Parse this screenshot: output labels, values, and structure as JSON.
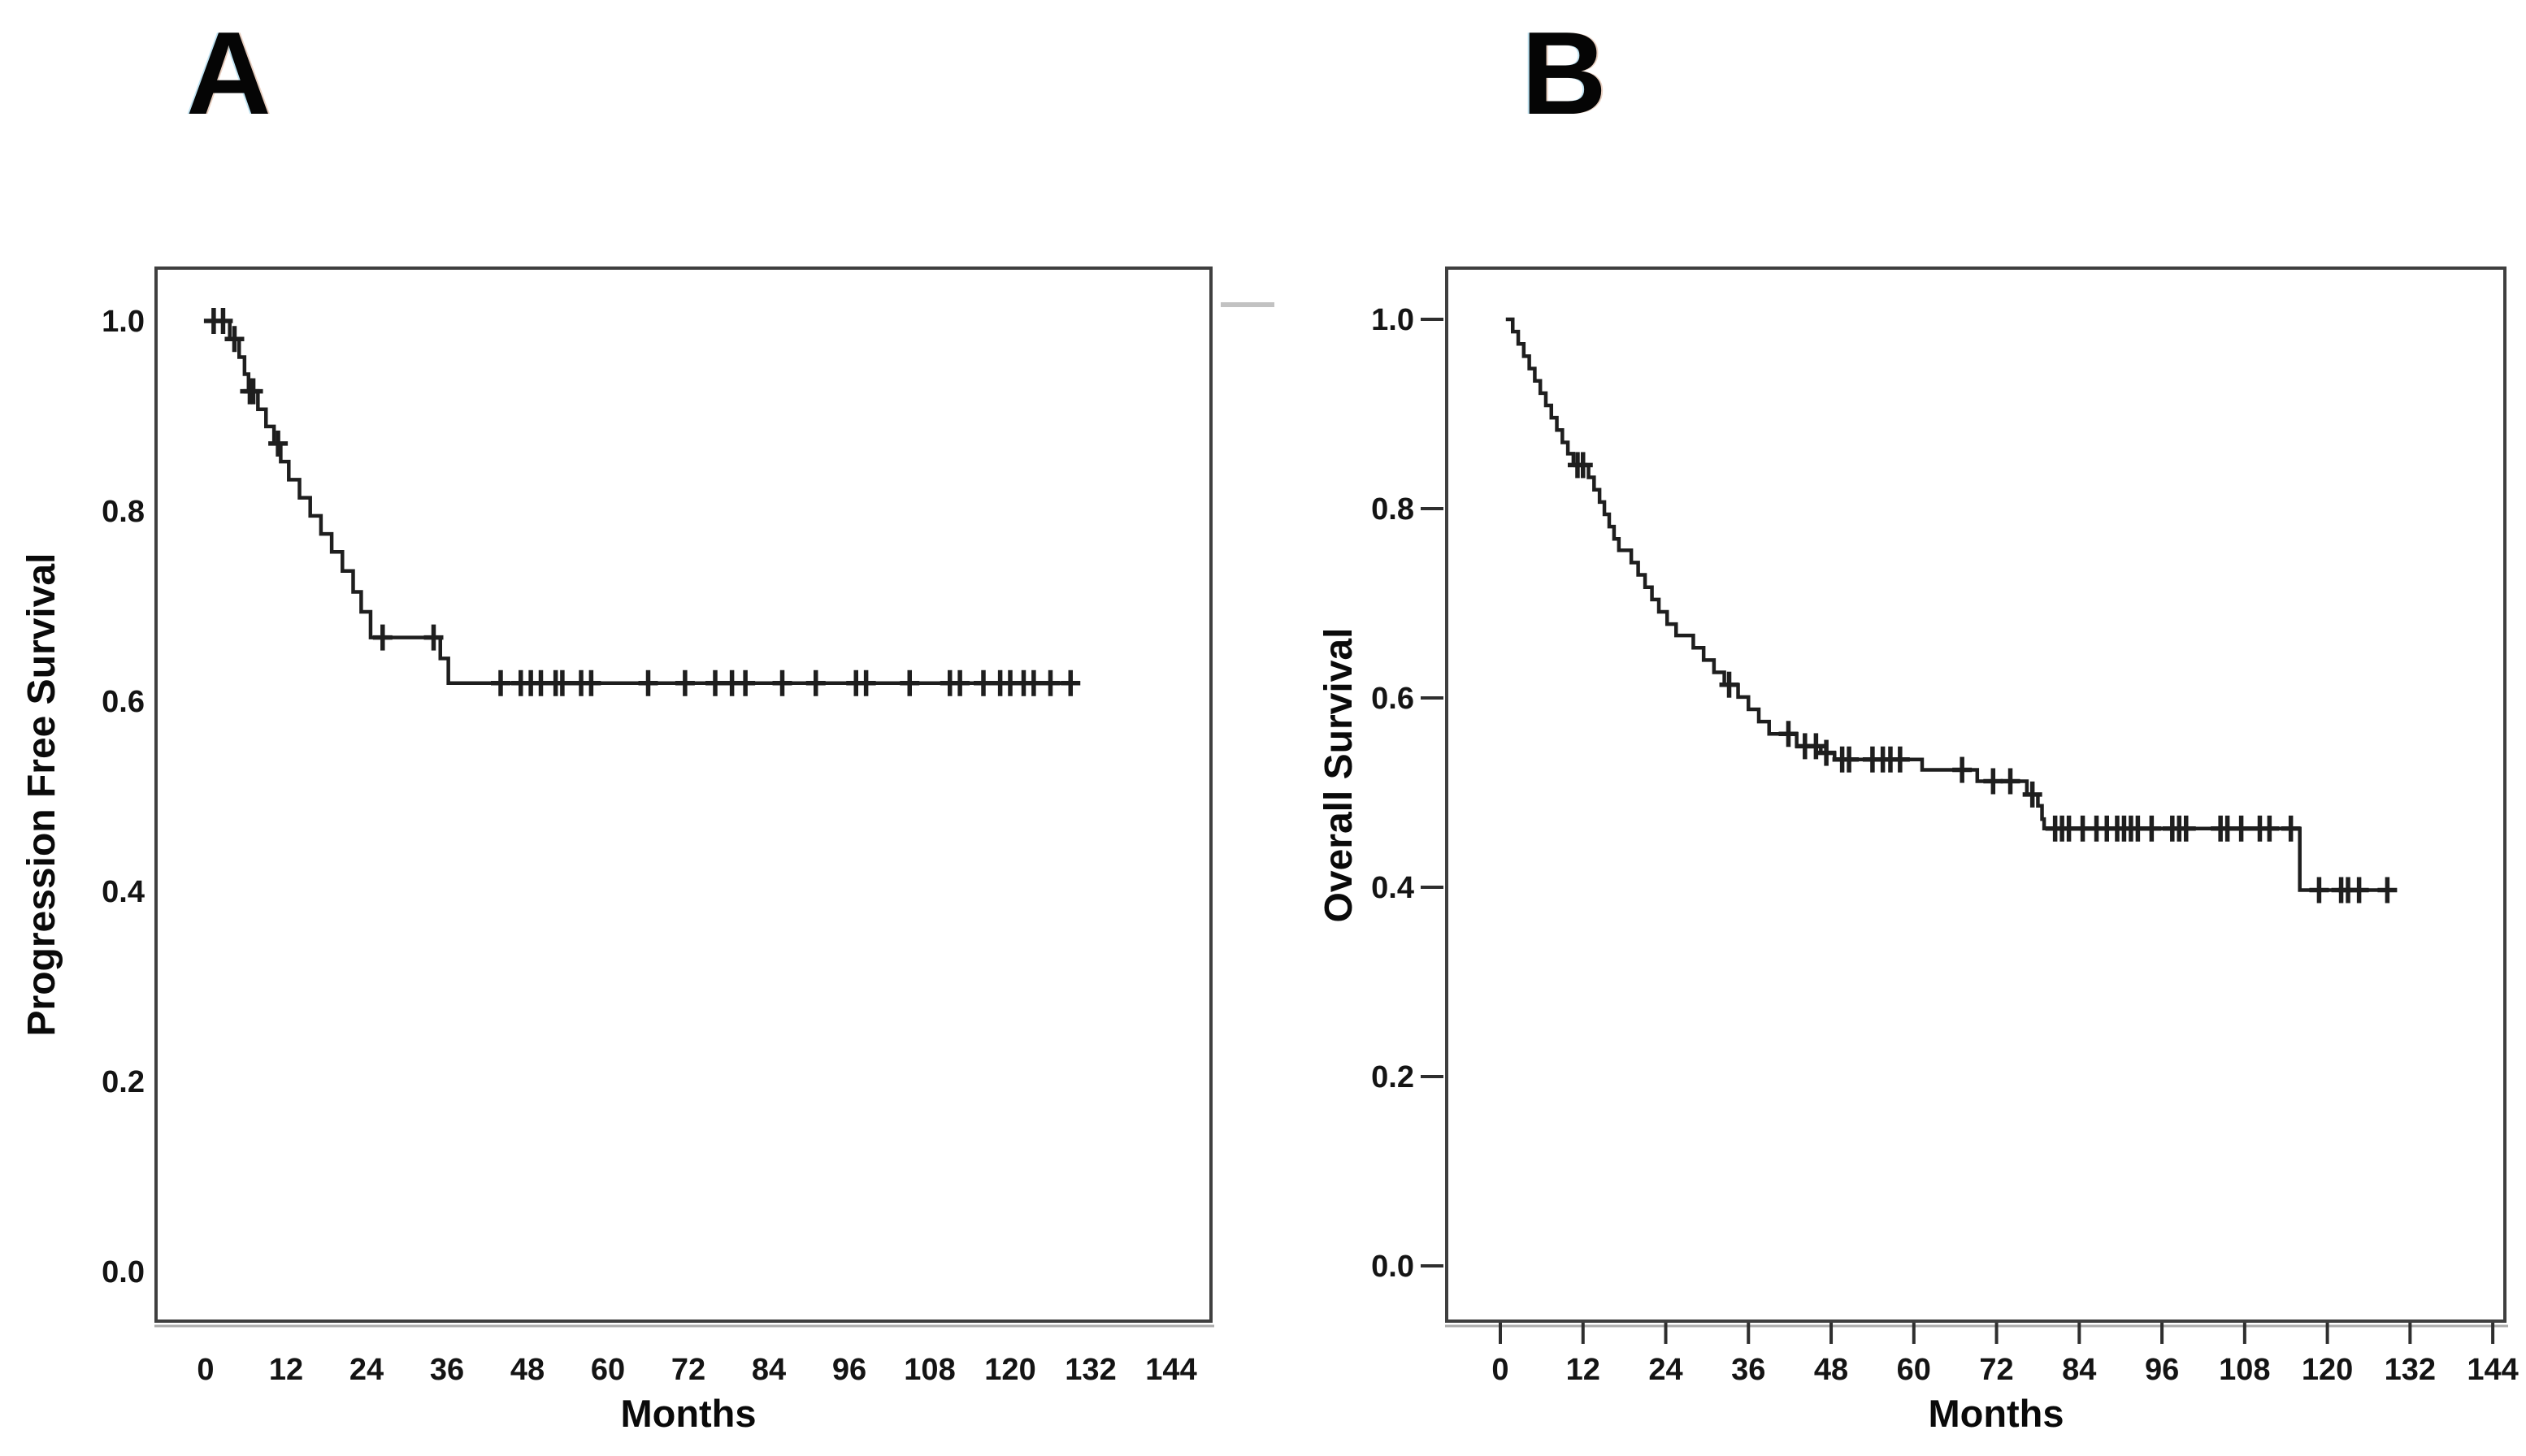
{
  "figure": {
    "background_color": "#ffffff",
    "curve_color": "#1e1e1e",
    "frame_color": "#3f3f3f",
    "frame_shadow_color": "#ababab",
    "tick_label_color": "#141414",
    "panels": [
      {
        "panel_label": "A",
        "y_axis_title": "Progression Free Survival",
        "x_axis_title": "Months"
      },
      {
        "panel_label": "B",
        "y_axis_title": "Overall Survival",
        "x_axis_title": "Months"
      }
    ]
  },
  "chart_data": [
    {
      "type": "line",
      "subtype": "kaplan_meier_step",
      "panel": "A",
      "title": "A",
      "xlabel": "Months",
      "ylabel": "Progression Free Survival",
      "xlim": [
        0,
        144
      ],
      "ylim": [
        0.0,
        1.0
      ],
      "grid": false,
      "legend": false,
      "x_ticks": [
        0,
        12,
        24,
        36,
        48,
        60,
        72,
        84,
        96,
        108,
        120,
        132,
        144
      ],
      "y_ticks": [
        1.0,
        0.8,
        0.6,
        0.4,
        0.2,
        0.0
      ],
      "start": {
        "t": 0,
        "s": 1.0
      },
      "end_t": 130,
      "steps": [
        [
          3.6,
          0.981
        ],
        [
          5,
          0.962
        ],
        [
          5.8,
          0.944
        ],
        [
          6.4,
          0.926
        ],
        [
          7.8,
          0.907
        ],
        [
          9,
          0.889
        ],
        [
          10.2,
          0.871
        ],
        [
          11.2,
          0.852
        ],
        [
          12.4,
          0.833
        ],
        [
          14,
          0.814
        ],
        [
          15.6,
          0.795
        ],
        [
          17.2,
          0.776
        ],
        [
          18.8,
          0.757
        ],
        [
          20.4,
          0.737
        ],
        [
          22,
          0.715
        ],
        [
          23.2,
          0.694
        ],
        [
          24.6,
          0.667
        ],
        [
          35,
          0.645
        ],
        [
          36.2,
          0.619
        ]
      ],
      "censor_marks": [
        [
          1.2,
          1.0
        ],
        [
          2.6,
          1.0
        ],
        [
          4.3,
          0.981
        ],
        [
          6.6,
          0.926
        ],
        [
          7.1,
          0.926
        ],
        [
          10.8,
          0.871
        ],
        [
          26.4,
          0.667
        ],
        [
          34,
          0.667
        ],
        [
          44,
          0.619
        ],
        [
          47,
          0.619
        ],
        [
          48.5,
          0.619
        ],
        [
          50,
          0.619
        ],
        [
          52.2,
          0.619
        ],
        [
          53.2,
          0.619
        ],
        [
          56,
          0.619
        ],
        [
          57.5,
          0.619
        ],
        [
          66,
          0.619
        ],
        [
          71.5,
          0.619
        ],
        [
          76,
          0.619
        ],
        [
          78.5,
          0.619
        ],
        [
          80.5,
          0.619
        ],
        [
          86,
          0.619
        ],
        [
          91,
          0.619
        ],
        [
          97,
          0.619
        ],
        [
          98.5,
          0.619
        ],
        [
          105,
          0.619
        ],
        [
          111,
          0.619
        ],
        [
          112.5,
          0.619
        ],
        [
          116,
          0.619
        ],
        [
          118.5,
          0.619
        ],
        [
          120,
          0.619
        ],
        [
          122,
          0.619
        ],
        [
          123.5,
          0.619
        ],
        [
          126,
          0.619
        ],
        [
          129,
          0.619
        ]
      ]
    },
    {
      "type": "line",
      "subtype": "kaplan_meier_step",
      "panel": "B",
      "title": "B",
      "xlabel": "Months",
      "ylabel": "Overall Survival",
      "xlim": [
        0,
        144
      ],
      "ylim": [
        0.0,
        1.0
      ],
      "grid": false,
      "legend": false,
      "x_ticks": [
        0,
        12,
        24,
        36,
        48,
        60,
        72,
        84,
        96,
        108,
        120,
        132,
        144
      ],
      "y_ticks": [
        1.0,
        0.8,
        0.6,
        0.4,
        0.2,
        0.0
      ],
      "start": {
        "t": 0.8,
        "s": 1.0
      },
      "end_t": 130,
      "steps": [
        [
          1.8,
          0.987
        ],
        [
          2.6,
          0.974
        ],
        [
          3.4,
          0.961
        ],
        [
          4.2,
          0.948
        ],
        [
          5,
          0.935
        ],
        [
          5.8,
          0.922
        ],
        [
          6.6,
          0.909
        ],
        [
          7.4,
          0.896
        ],
        [
          8.2,
          0.883
        ],
        [
          9,
          0.87
        ],
        [
          9.8,
          0.858
        ],
        [
          10.6,
          0.846
        ],
        [
          12.8,
          0.833
        ],
        [
          13.6,
          0.82
        ],
        [
          14.4,
          0.807
        ],
        [
          15.1,
          0.794
        ],
        [
          15.8,
          0.781
        ],
        [
          16.5,
          0.768
        ],
        [
          17.2,
          0.756
        ],
        [
          19,
          0.743
        ],
        [
          20,
          0.73
        ],
        [
          21,
          0.717
        ],
        [
          22,
          0.704
        ],
        [
          23,
          0.691
        ],
        [
          24.2,
          0.678
        ],
        [
          25.5,
          0.666
        ],
        [
          28,
          0.653
        ],
        [
          29.5,
          0.64
        ],
        [
          31,
          0.627
        ],
        [
          32.5,
          0.614
        ],
        [
          34.5,
          0.601
        ],
        [
          36,
          0.588
        ],
        [
          37.5,
          0.575
        ],
        [
          39,
          0.562
        ],
        [
          43,
          0.549
        ],
        [
          46.5,
          0.542
        ],
        [
          48.5,
          0.535
        ],
        [
          61.2,
          0.524
        ],
        [
          69.2,
          0.512
        ],
        [
          76.4,
          0.498
        ],
        [
          78,
          0.486
        ],
        [
          78.6,
          0.472
        ],
        [
          78.9,
          0.462
        ],
        [
          116,
          0.397
        ]
      ],
      "censor_marks": [
        [
          11.2,
          0.846
        ],
        [
          12,
          0.846
        ],
        [
          33.2,
          0.614
        ],
        [
          41.8,
          0.562
        ],
        [
          44.2,
          0.549
        ],
        [
          45.8,
          0.549
        ],
        [
          47.3,
          0.542
        ],
        [
          49.6,
          0.535
        ],
        [
          50.6,
          0.535
        ],
        [
          54,
          0.535
        ],
        [
          55.5,
          0.535
        ],
        [
          56.6,
          0.535
        ],
        [
          58,
          0.535
        ],
        [
          67,
          0.524
        ],
        [
          71.5,
          0.512
        ],
        [
          74,
          0.512
        ],
        [
          77.2,
          0.498
        ],
        [
          80.5,
          0.462
        ],
        [
          81.5,
          0.462
        ],
        [
          82.5,
          0.462
        ],
        [
          84.5,
          0.462
        ],
        [
          86.5,
          0.462
        ],
        [
          88,
          0.462
        ],
        [
          89.5,
          0.462
        ],
        [
          90.5,
          0.462
        ],
        [
          91.5,
          0.462
        ],
        [
          92.5,
          0.462
        ],
        [
          94.5,
          0.462
        ],
        [
          97.5,
          0.462
        ],
        [
          98.5,
          0.462
        ],
        [
          99.5,
          0.462
        ],
        [
          104.5,
          0.462
        ],
        [
          105.5,
          0.462
        ],
        [
          107.5,
          0.462
        ],
        [
          110.2,
          0.462
        ],
        [
          111.6,
          0.462
        ],
        [
          114.7,
          0.462
        ],
        [
          118.8,
          0.397
        ],
        [
          122,
          0.397
        ],
        [
          123,
          0.397
        ],
        [
          124.6,
          0.397
        ],
        [
          128.7,
          0.397
        ]
      ]
    }
  ]
}
